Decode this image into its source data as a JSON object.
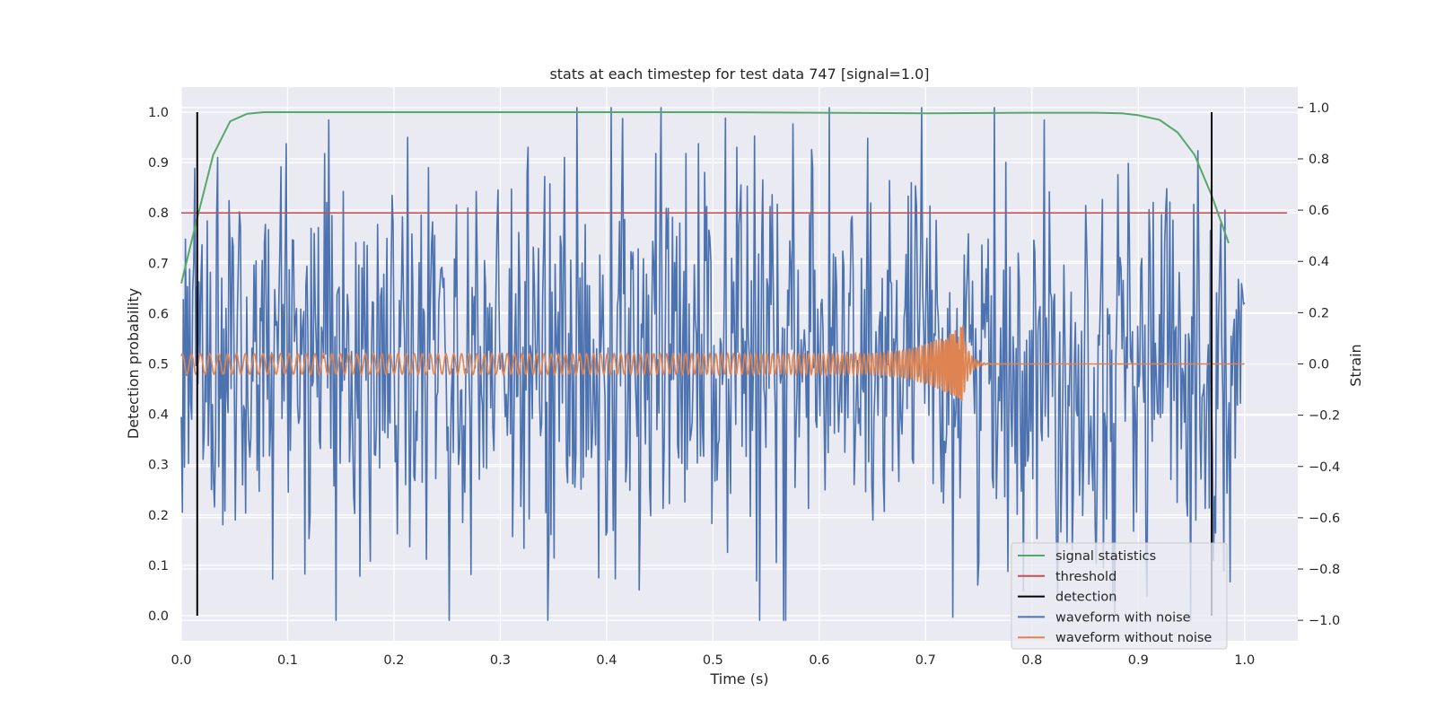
{
  "chart_data": {
    "type": "line",
    "title": "stats at each timestep for test data 747 [signal=1.0]",
    "xlabel": "Time (s)",
    "ylabel": "Detection probability",
    "y2label": "Strain",
    "xlim": [
      0.0,
      1.05
    ],
    "ylim": [
      -0.05,
      1.05
    ],
    "y2lim": [
      -1.08,
      1.08
    ],
    "xticks": [
      "0.0",
      "0.1",
      "0.2",
      "0.3",
      "0.4",
      "0.5",
      "0.6",
      "0.7",
      "0.8",
      "0.9",
      "1.0"
    ],
    "yticks": [
      "0.0",
      "0.1",
      "0.2",
      "0.3",
      "0.4",
      "0.5",
      "0.6",
      "0.7",
      "0.8",
      "0.9",
      "1.0"
    ],
    "y2ticks": [
      "−1.0",
      "−0.8",
      "−0.6",
      "−0.4",
      "−0.2",
      "0.0",
      "0.2",
      "0.4",
      "0.6",
      "0.8",
      "1.0"
    ],
    "grid": true,
    "legend_position": "lower-right",
    "colors": {
      "background": "#eaeaf2",
      "grid": "#ffffff",
      "signal_statistics": "#55a868",
      "threshold": "#c44e52",
      "detection": "#000000",
      "waveform_with_noise": "#4c72b0",
      "waveform_without_noise": "#dd8452"
    },
    "series": [
      {
        "name": "signal statistics",
        "axis": "left",
        "x": [
          0.0,
          0.015,
          0.03,
          0.046,
          0.062,
          0.078,
          0.1,
          0.2,
          0.3,
          0.4,
          0.5,
          0.6,
          0.7,
          0.8,
          0.86,
          0.885,
          0.9,
          0.92,
          0.937,
          0.953,
          0.969,
          0.985
        ],
        "y": [
          0.66,
          0.79,
          0.915,
          0.982,
          0.997,
          1.0,
          1.0,
          1.0,
          1.0,
          1.0,
          1.0,
          0.999,
          0.998,
          0.999,
          0.999,
          0.998,
          0.994,
          0.985,
          0.96,
          0.915,
          0.835,
          0.74
        ]
      },
      {
        "name": "threshold",
        "axis": "left",
        "x": [
          0.0,
          1.04
        ],
        "y": [
          0.8,
          0.8
        ]
      },
      {
        "name": "detection",
        "axis": "left",
        "x": [
          0.015,
          0.969
        ],
        "y": [
          1.0,
          1.0
        ]
      },
      {
        "name": "waveform with noise",
        "axis": "right",
        "x_range": [
          0.0,
          1.0
        ],
        "y_range": [
          -1.0,
          1.0
        ]
      },
      {
        "name": "waveform without noise",
        "axis": "right",
        "x_range": [
          0.0,
          1.0
        ],
        "amplitude": 0.04,
        "peak_time": 0.735,
        "peak_amplitude": 0.15
      }
    ]
  }
}
